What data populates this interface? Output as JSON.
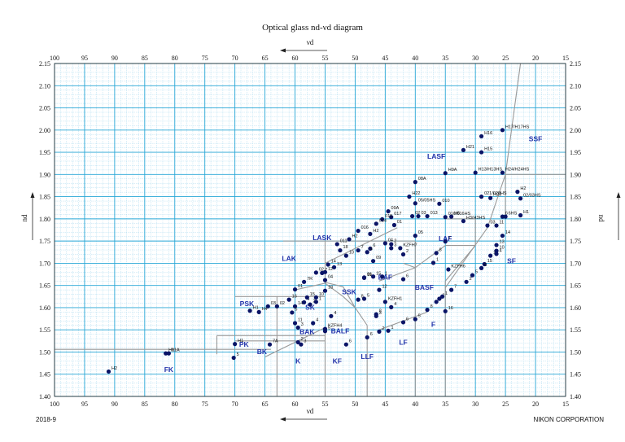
{
  "title": "Optical glass  nd-νd  diagram",
  "footer_left": "2018-9",
  "footer_right": "NIKON CORPORATION",
  "colors": {
    "grid_major": "#29a7d6",
    "grid_minor": "#9fd6ee",
    "boundary": "#999999",
    "point": "#0a1466",
    "region_label": "#2233aa"
  },
  "chart_data": {
    "type": "scatter",
    "title": "Optical glass  nd-νd  diagram",
    "xlabel": "νd",
    "ylabel": "nd",
    "xlim": [
      100,
      15
    ],
    "ylim": [
      1.4,
      2.15
    ],
    "x_ticks": [
      100,
      95,
      90,
      85,
      80,
      75,
      70,
      65,
      60,
      55,
      50,
      45,
      40,
      35,
      30,
      25,
      20,
      15
    ],
    "y_ticks": [
      1.4,
      1.45,
      1.5,
      1.55,
      1.6,
      1.65,
      1.7,
      1.75,
      1.8,
      1.85,
      1.9,
      1.95,
      2.0,
      2.05,
      2.1,
      2.15
    ],
    "grid": true,
    "regions": [
      {
        "label": "FK",
        "x": 81,
        "y": 1.455
      },
      {
        "label": "PK",
        "x": 68.5,
        "y": 1.512
      },
      {
        "label": "BK",
        "x": 65.5,
        "y": 1.495
      },
      {
        "label": "PSK",
        "x": 68,
        "y": 1.604
      },
      {
        "label": "SK",
        "x": 57.5,
        "y": 1.595
      },
      {
        "label": "SSK",
        "x": 51,
        "y": 1.63
      },
      {
        "label": "BAK",
        "x": 58,
        "y": 1.54
      },
      {
        "label": "BALF",
        "x": 52.5,
        "y": 1.542
      },
      {
        "label": "K",
        "x": 59.5,
        "y": 1.474
      },
      {
        "label": "KF",
        "x": 53,
        "y": 1.474
      },
      {
        "label": "LLF",
        "x": 48,
        "y": 1.484
      },
      {
        "label": "LF",
        "x": 42,
        "y": 1.516
      },
      {
        "label": "F",
        "x": 37,
        "y": 1.557
      },
      {
        "label": "BAF",
        "x": 45,
        "y": 1.663
      },
      {
        "label": "BASF",
        "x": 38.5,
        "y": 1.64
      },
      {
        "label": "LAK",
        "x": 61,
        "y": 1.705
      },
      {
        "label": "LASK",
        "x": 55.5,
        "y": 1.752
      },
      {
        "label": "LAF",
        "x": 35,
        "y": 1.75
      },
      {
        "label": "LASF",
        "x": 36.5,
        "y": 1.935
      },
      {
        "label": "SF",
        "x": 24,
        "y": 1.7
      },
      {
        "label": "SSF",
        "x": 20,
        "y": 1.975
      }
    ],
    "points": [
      {
        "label": "H2",
        "x": 91,
        "y": 1.456
      },
      {
        "label": "H1",
        "x": 81.5,
        "y": 1.497
      },
      {
        "label": "01A",
        "x": 81,
        "y": 1.497
      },
      {
        "label": "H1",
        "x": 70,
        "y": 1.518
      },
      {
        "label": "5",
        "x": 70.2,
        "y": 1.487
      },
      {
        "label": "7A",
        "x": 64.2,
        "y": 1.517
      },
      {
        "label": "3",
        "x": 59,
        "y": 1.517
      },
      {
        "label": "2",
        "x": 59.5,
        "y": 1.522
      },
      {
        "label": "3",
        "x": 59.5,
        "y": 1.555
      },
      {
        "label": "4",
        "x": 57,
        "y": 1.565
      },
      {
        "label": "5",
        "x": 55,
        "y": 1.547
      },
      {
        "label": "KZFH4",
        "x": 55,
        "y": 1.552
      },
      {
        "label": "4",
        "x": 54,
        "y": 1.581
      },
      {
        "label": "6",
        "x": 51.5,
        "y": 1.517
      },
      {
        "label": "H4",
        "x": 66,
        "y": 1.59
      },
      {
        "label": "H1",
        "x": 67.5,
        "y": 1.593
      },
      {
        "label": "03",
        "x": 64.5,
        "y": 1.603
      },
      {
        "label": "02",
        "x": 63,
        "y": 1.603
      },
      {
        "label": "16",
        "x": 61,
        "y": 1.618
      },
      {
        "label": "14",
        "x": 60,
        "y": 1.603
      },
      {
        "label": "11",
        "x": 60,
        "y": 1.565
      },
      {
        "label": "5",
        "x": 60.5,
        "y": 1.589
      },
      {
        "label": "4",
        "x": 58.5,
        "y": 1.612
      },
      {
        "label": "2",
        "x": 57.5,
        "y": 1.607
      },
      {
        "label": "1",
        "x": 56.5,
        "y": 1.613
      },
      {
        "label": "15",
        "x": 58,
        "y": 1.623
      },
      {
        "label": "10",
        "x": 56.5,
        "y": 1.623
      },
      {
        "label": "18",
        "x": 55,
        "y": 1.638
      },
      {
        "label": "01",
        "x": 60,
        "y": 1.641
      },
      {
        "label": "7R",
        "x": 58.5,
        "y": 1.658
      },
      {
        "label": "8",
        "x": 49.5,
        "y": 1.618
      },
      {
        "label": "5",
        "x": 48.5,
        "y": 1.62
      },
      {
        "label": "12",
        "x": 46,
        "y": 1.64
      },
      {
        "label": "11",
        "x": 48.5,
        "y": 1.667
      },
      {
        "label": "15",
        "x": 47,
        "y": 1.67
      },
      {
        "label": "1",
        "x": 45.5,
        "y": 1.67
      },
      {
        "label": "6",
        "x": 42,
        "y": 1.664
      },
      {
        "label": "4",
        "x": 44,
        "y": 1.601
      },
      {
        "label": "8",
        "x": 46.5,
        "y": 1.585
      },
      {
        "label": "KZFH1",
        "x": 45,
        "y": 1.613
      },
      {
        "label": "3",
        "x": 46.5,
        "y": 1.581
      },
      {
        "label": "2",
        "x": 46,
        "y": 1.546
      },
      {
        "label": "1",
        "x": 44.5,
        "y": 1.548
      },
      {
        "label": "6",
        "x": 48,
        "y": 1.533
      },
      {
        "label": "6",
        "x": 42,
        "y": 1.567
      },
      {
        "label": "5",
        "x": 40,
        "y": 1.574
      },
      {
        "label": "8",
        "x": 38,
        "y": 1.595
      },
      {
        "label": "3",
        "x": 36.5,
        "y": 1.613
      },
      {
        "label": "2",
        "x": 36,
        "y": 1.62
      },
      {
        "label": "1",
        "x": 35.5,
        "y": 1.625
      },
      {
        "label": "16",
        "x": 35,
        "y": 1.592
      },
      {
        "label": "7",
        "x": 34,
        "y": 1.64
      },
      {
        "label": "2",
        "x": 31.5,
        "y": 1.658
      },
      {
        "label": "5",
        "x": 30.5,
        "y": 1.673
      },
      {
        "label": "15",
        "x": 28.5,
        "y": 1.698
      },
      {
        "label": "6",
        "x": 29,
        "y": 1.689
      },
      {
        "label": "1",
        "x": 27.5,
        "y": 1.717
      },
      {
        "label": "4",
        "x": 26.5,
        "y": 1.721
      },
      {
        "label": "13",
        "x": 26.5,
        "y": 1.741
      },
      {
        "label": "14",
        "x": 25.5,
        "y": 1.762
      },
      {
        "label": "10",
        "x": 26.5,
        "y": 1.728
      },
      {
        "label": "03",
        "x": 28,
        "y": 1.785
      },
      {
        "label": "11",
        "x": 26.5,
        "y": 1.785
      },
      {
        "label": "6",
        "x": 25.5,
        "y": 1.805
      },
      {
        "label": "6HS",
        "x": 25,
        "y": 1.805
      },
      {
        "label": "H1",
        "x": 22.5,
        "y": 1.808
      },
      {
        "label": "H2",
        "x": 23,
        "y": 1.861
      },
      {
        "label": "02/03HS",
        "x": 22.5,
        "y": 1.846
      },
      {
        "label": "H23",
        "x": 27.5,
        "y": 1.847
      },
      {
        "label": "021/020HS",
        "x": 29,
        "y": 1.85
      },
      {
        "label": "H3/H3HS",
        "x": 32,
        "y": 1.795
      },
      {
        "label": "H24/H24HS",
        "x": 25.5,
        "y": 1.904
      },
      {
        "label": "H13/H13HS",
        "x": 30,
        "y": 1.904
      },
      {
        "label": "H15",
        "x": 29,
        "y": 1.95
      },
      {
        "label": "H21",
        "x": 32,
        "y": 1.955
      },
      {
        "label": "H16",
        "x": 29,
        "y": 1.986
      },
      {
        "label": "H17/H17HS",
        "x": 25.5,
        "y": 2.0
      },
      {
        "label": "H9A",
        "x": 35,
        "y": 1.903
      },
      {
        "label": "08A",
        "x": 40,
        "y": 1.883
      },
      {
        "label": "H22",
        "x": 41,
        "y": 1.85
      },
      {
        "label": "05/05HS",
        "x": 40,
        "y": 1.835
      },
      {
        "label": "010",
        "x": 36,
        "y": 1.834
      },
      {
        "label": "H6",
        "x": 34,
        "y": 1.805
      },
      {
        "label": "016/016HS",
        "x": 35,
        "y": 1.804
      },
      {
        "label": "02",
        "x": 40.5,
        "y": 1.806
      },
      {
        "label": "03",
        "x": 39.5,
        "y": 1.806
      },
      {
        "label": "013",
        "x": 38,
        "y": 1.806
      },
      {
        "label": "09A",
        "x": 44.5,
        "y": 1.817
      },
      {
        "label": "017",
        "x": 44,
        "y": 1.804
      },
      {
        "label": "015",
        "x": 45.5,
        "y": 1.799
      },
      {
        "label": "014",
        "x": 46.5,
        "y": 1.789
      },
      {
        "label": "01",
        "x": 43.5,
        "y": 1.786
      },
      {
        "label": "016",
        "x": 49.5,
        "y": 1.773
      },
      {
        "label": "H2",
        "x": 47.5,
        "y": 1.766
      },
      {
        "label": "04",
        "x": 45,
        "y": 1.745
      },
      {
        "label": "2",
        "x": 44,
        "y": 1.743
      },
      {
        "label": "05",
        "x": 40,
        "y": 1.762
      },
      {
        "label": "7",
        "x": 35,
        "y": 1.749
      },
      {
        "label": "8",
        "x": 36.5,
        "y": 1.723
      },
      {
        "label": "KZFH6",
        "x": 34.5,
        "y": 1.686
      },
      {
        "label": "1",
        "x": 37,
        "y": 1.701
      },
      {
        "label": "2",
        "x": 42,
        "y": 1.72
      },
      {
        "label": "KZFH7",
        "x": 42.5,
        "y": 1.734
      },
      {
        "label": "3",
        "x": 44,
        "y": 1.734
      },
      {
        "label": "6",
        "x": 47.5,
        "y": 1.733
      },
      {
        "label": "H2",
        "x": 51,
        "y": 1.754
      },
      {
        "label": "011",
        "x": 53,
        "y": 1.743
      },
      {
        "label": "18",
        "x": 52.5,
        "y": 1.729
      },
      {
        "label": "10",
        "x": 51.5,
        "y": 1.717
      },
      {
        "label": "7",
        "x": 49.5,
        "y": 1.729
      },
      {
        "label": "4",
        "x": 48,
        "y": 1.725
      },
      {
        "label": "09",
        "x": 47,
        "y": 1.705
      },
      {
        "label": "14",
        "x": 54.5,
        "y": 1.697
      },
      {
        "label": "13",
        "x": 53.5,
        "y": 1.691
      },
      {
        "label": "12",
        "x": 55,
        "y": 1.68
      },
      {
        "label": "02",
        "x": 56.5,
        "y": 1.679
      },
      {
        "label": "7",
        "x": 55.5,
        "y": 1.678
      },
      {
        "label": "06",
        "x": 48.5,
        "y": 1.668
      },
      {
        "label": "04",
        "x": 55,
        "y": 1.662
      }
    ]
  }
}
